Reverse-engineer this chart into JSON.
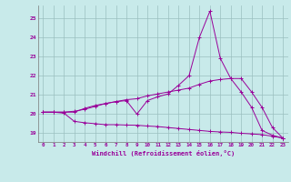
{
  "bg_color": "#c8eaea",
  "line_color": "#990099",
  "grid_color": "#9bbfbf",
  "xlabel": "Windchill (Refroidissement éolien,°C)",
  "x_values": [
    0,
    1,
    2,
    3,
    4,
    5,
    6,
    7,
    8,
    9,
    10,
    11,
    12,
    13,
    14,
    15,
    16,
    17,
    18,
    19,
    20,
    21,
    22,
    23
  ],
  "curve1": [
    20.1,
    20.1,
    20.1,
    20.1,
    20.3,
    20.45,
    20.55,
    20.65,
    20.7,
    20.0,
    20.7,
    20.9,
    21.05,
    21.5,
    22.0,
    24.0,
    25.35,
    22.9,
    21.85,
    21.15,
    20.35,
    19.15,
    18.9,
    18.75
  ],
  "curve2": [
    20.1,
    20.1,
    20.1,
    20.15,
    20.25,
    20.4,
    20.55,
    20.65,
    20.75,
    20.8,
    20.95,
    21.05,
    21.15,
    21.25,
    21.35,
    21.55,
    21.72,
    21.8,
    21.85,
    21.85,
    21.15,
    20.35,
    19.3,
    18.75
  ],
  "curve3": [
    20.1,
    20.1,
    20.05,
    19.62,
    19.55,
    19.5,
    19.45,
    19.45,
    19.43,
    19.42,
    19.38,
    19.35,
    19.3,
    19.25,
    19.2,
    19.15,
    19.1,
    19.07,
    19.05,
    19.0,
    18.97,
    18.93,
    18.85,
    18.75
  ],
  "yticks": [
    19,
    20,
    21,
    22,
    23,
    24,
    25
  ],
  "xticks": [
    0,
    1,
    2,
    3,
    4,
    5,
    6,
    7,
    8,
    9,
    10,
    11,
    12,
    13,
    14,
    15,
    16,
    17,
    18,
    19,
    20,
    21,
    22,
    23
  ],
  "ylim": [
    18.55,
    25.65
  ],
  "xlim": [
    -0.5,
    23.5
  ]
}
